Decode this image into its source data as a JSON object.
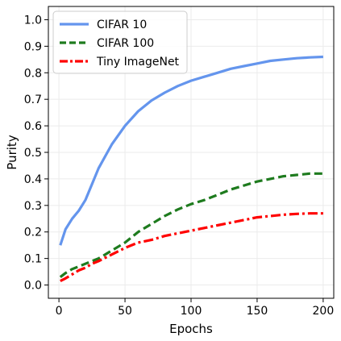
{
  "chart_data": {
    "type": "line",
    "title": "",
    "xlabel": "Epochs",
    "ylabel": "Purity",
    "xlim": [
      -8,
      208
    ],
    "ylim": [
      -0.05,
      1.05
    ],
    "xticks": [
      0,
      50,
      100,
      150,
      200
    ],
    "yticks": [
      0.0,
      0.1,
      0.2,
      0.3,
      0.4,
      0.5,
      0.6,
      0.7,
      0.8,
      0.9,
      1.0
    ],
    "xtick_labels": [
      "0",
      "50",
      "100",
      "150",
      "200"
    ],
    "ytick_labels": [
      "0.0",
      "0.1",
      "0.2",
      "0.3",
      "0.4",
      "0.5",
      "0.6",
      "0.7",
      "0.8",
      "0.9",
      "1.0"
    ],
    "grid": true,
    "legend_position": "top-left",
    "x": [
      1,
      5,
      10,
      15,
      20,
      25,
      30,
      40,
      50,
      60,
      70,
      80,
      90,
      100,
      110,
      120,
      130,
      140,
      150,
      160,
      170,
      180,
      190,
      200
    ],
    "series": [
      {
        "name": "CIFAR 10",
        "color": "#6495ED",
        "dash": "solid",
        "values": [
          0.15,
          0.21,
          0.25,
          0.28,
          0.32,
          0.38,
          0.44,
          0.53,
          0.6,
          0.655,
          0.695,
          0.725,
          0.75,
          0.77,
          0.785,
          0.8,
          0.815,
          0.825,
          0.835,
          0.845,
          0.85,
          0.855,
          0.858,
          0.86
        ]
      },
      {
        "name": "CIFAR 100",
        "color": "#1E7B1E",
        "dash": "dashed",
        "values": [
          0.03,
          0.045,
          0.06,
          0.07,
          0.08,
          0.09,
          0.1,
          0.13,
          0.16,
          0.2,
          0.23,
          0.26,
          0.285,
          0.305,
          0.32,
          0.34,
          0.36,
          0.375,
          0.39,
          0.4,
          0.41,
          0.415,
          0.42,
          0.42
        ]
      },
      {
        "name": "Tiny ImageNet",
        "color": "#FF0000",
        "dash": "dashdot",
        "values": [
          0.015,
          0.025,
          0.04,
          0.055,
          0.065,
          0.08,
          0.09,
          0.115,
          0.14,
          0.16,
          0.17,
          0.185,
          0.195,
          0.205,
          0.215,
          0.225,
          0.235,
          0.245,
          0.255,
          0.26,
          0.265,
          0.268,
          0.27,
          0.27
        ]
      }
    ]
  }
}
